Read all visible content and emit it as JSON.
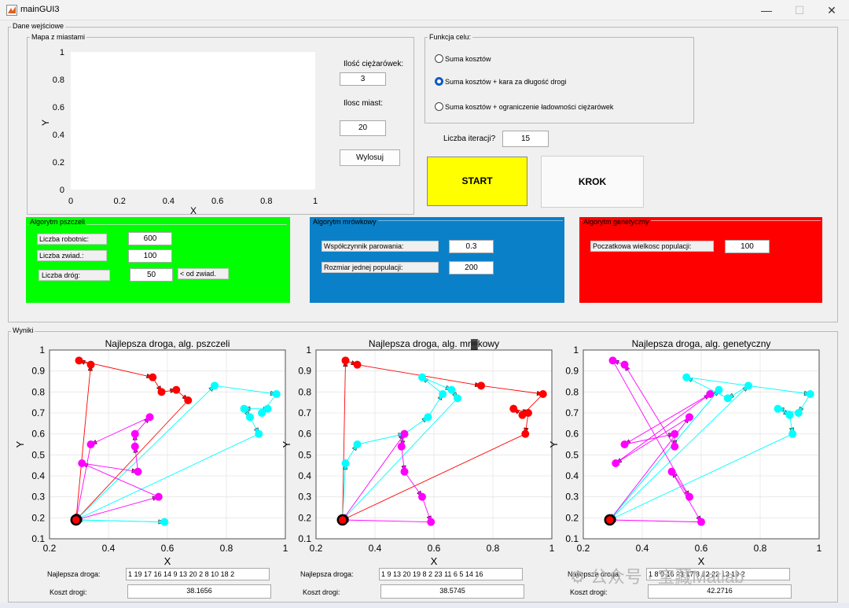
{
  "window": {
    "title": "mainGUI3",
    "minimize": "—",
    "maximize": "☐",
    "close": "✕"
  },
  "input": {
    "title": "Dane wejściowe",
    "map": {
      "title": "Mapa z miastami",
      "xlabel": "X",
      "ylabel": "Y",
      "xticks": [
        "0",
        "0.2",
        "0.4",
        "0.6",
        "0.8",
        "1"
      ],
      "yticks": [
        "0",
        "0.2",
        "0.4",
        "0.6",
        "0.8",
        "1"
      ]
    },
    "trucks_label": "Ilość ciężarówek:",
    "trucks_value": "3",
    "cities_label": "Ilosc miast:",
    "cities_value": "20",
    "draw_button": "Wylosuj",
    "objective": {
      "title": "Funkcja celu:",
      "options": [
        "Suma kosztów",
        "Suma kosztów + kara za długość drogi",
        "Suma kosztów + ograniczenie ładowności ciężarówek"
      ],
      "selected_index": 1
    },
    "iterations_label": "Liczba iteracji?",
    "iterations_value": "15",
    "start_button": "START",
    "step_button": "KROK",
    "bee": {
      "title": "Algorytm pszczeli",
      "workers_label": "Liczba robotnic:",
      "workers_value": "600",
      "scouts_label": "Liczba zwiad.:",
      "scouts_value": "100",
      "roads_label": "Liczba dróg:",
      "roads_value": "50",
      "roads_note": "< od zwiad."
    },
    "ant": {
      "title": "Algorytm mrówkowy",
      "evap_label": "Współczynnik parowania:",
      "evap_value": "0.3",
      "pop_label": "Rozmiar jednej populacji:",
      "pop_value": "200"
    },
    "genetic": {
      "title": "Algorytm genetyczny",
      "pop_label": "Poczatkowa wielkosc populacji:",
      "pop_value": "100"
    }
  },
  "results": {
    "title": "Wyniki",
    "best_label": "Najlepsza droga:",
    "cost_label": "Koszt drogi:",
    "colors": {
      "route1": "#ff0000",
      "route2": "#00ffff",
      "route3": "#ff00ff",
      "depot": "#000000"
    },
    "plots": [
      {
        "title": "Najlepsza droga, alg. pszczeli",
        "route_text": "1 19 17 16 14 9 13 20 2 8 10 18 2",
        "cost": "38.1656"
      },
      {
        "title": "Najlepsza droga, alg. mr▓kowy",
        "route_text": "1 9 13 20 19 8 2 23 11 6 5 14 16",
        "cost": "38.5745"
      },
      {
        "title": "Najlepsza droga, alg. genetyczny",
        "route_text": "1 8 9 16 23 17 3 12 22 13 19 2",
        "cost": "42.2716"
      }
    ]
  },
  "chart_data": [
    {
      "type": "scatter",
      "title": "",
      "xlabel": "X",
      "ylabel": "Y",
      "xlim": [
        0,
        1
      ],
      "ylim": [
        0,
        1
      ],
      "series": []
    },
    {
      "type": "line",
      "title": "Najlepsza droga, alg. pszczeli",
      "xlabel": "X",
      "ylabel": "Y",
      "xlim": [
        0.2,
        1
      ],
      "ylim": [
        0.1,
        1
      ],
      "grid": true,
      "xticks": [
        "0.2",
        "0.4",
        "0.6",
        "0.8",
        "1"
      ],
      "yticks": [
        "0.1",
        "0.2",
        "0.3",
        "0.4",
        "0.5",
        "0.6",
        "0.7",
        "0.8",
        "0.9",
        "1"
      ],
      "depot": [
        0.29,
        0.19
      ],
      "series": [
        {
          "color": "#ff0000",
          "points": [
            [
              0.29,
              0.19
            ],
            [
              0.34,
              0.93
            ],
            [
              0.3,
              0.95
            ],
            [
              0.55,
              0.87
            ],
            [
              0.58,
              0.8
            ],
            [
              0.63,
              0.81
            ],
            [
              0.67,
              0.76
            ],
            [
              0.29,
              0.19
            ]
          ]
        },
        {
          "color": "#00ffff",
          "points": [
            [
              0.29,
              0.19
            ],
            [
              0.76,
              0.83
            ],
            [
              0.97,
              0.79
            ],
            [
              0.92,
              0.7
            ],
            [
              0.94,
              0.72
            ],
            [
              0.86,
              0.72
            ],
            [
              0.88,
              0.68
            ],
            [
              0.91,
              0.6
            ],
            [
              0.29,
              0.19
            ],
            [
              0.59,
              0.18
            ],
            [
              0.29,
              0.19
            ]
          ]
        },
        {
          "color": "#ff00ff",
          "points": [
            [
              0.29,
              0.19
            ],
            [
              0.57,
              0.3
            ],
            [
              0.31,
              0.46
            ],
            [
              0.5,
              0.42
            ],
            [
              0.49,
              0.54
            ],
            [
              0.49,
              0.6
            ],
            [
              0.54,
              0.68
            ],
            [
              0.34,
              0.55
            ],
            [
              0.29,
              0.19
            ]
          ]
        }
      ]
    },
    {
      "type": "line",
      "title": "Najlepsza droga, alg. mr▓kowy",
      "xlabel": "X",
      "ylabel": "Y",
      "xlim": [
        0.2,
        1
      ],
      "ylim": [
        0.1,
        1
      ],
      "grid": true,
      "xticks": [
        "0.2",
        "0.4",
        "0.6",
        "0.8",
        "1"
      ],
      "yticks": [
        "0.1",
        "0.2",
        "0.3",
        "0.4",
        "0.5",
        "0.6",
        "0.7",
        "0.8",
        "0.9",
        "1"
      ],
      "depot": [
        0.29,
        0.19
      ],
      "series": [
        {
          "color": "#ff0000",
          "points": [
            [
              0.29,
              0.19
            ],
            [
              0.3,
              0.95
            ],
            [
              0.34,
              0.93
            ],
            [
              0.76,
              0.83
            ],
            [
              0.97,
              0.79
            ],
            [
              0.9,
              0.69
            ],
            [
              0.87,
              0.72
            ],
            [
              0.92,
              0.7
            ],
            [
              0.91,
              0.6
            ],
            [
              0.29,
              0.19
            ]
          ]
        },
        {
          "color": "#00ffff",
          "points": [
            [
              0.29,
              0.19
            ],
            [
              0.3,
              0.46
            ],
            [
              0.34,
              0.55
            ],
            [
              0.5,
              0.6
            ],
            [
              0.58,
              0.68
            ],
            [
              0.63,
              0.79
            ],
            [
              0.56,
              0.87
            ],
            [
              0.66,
              0.81
            ],
            [
              0.68,
              0.77
            ],
            [
              0.29,
              0.19
            ]
          ]
        },
        {
          "color": "#ff00ff",
          "points": [
            [
              0.29,
              0.19
            ],
            [
              0.5,
              0.6
            ],
            [
              0.49,
              0.54
            ],
            [
              0.5,
              0.42
            ],
            [
              0.56,
              0.3
            ],
            [
              0.59,
              0.18
            ],
            [
              0.29,
              0.19
            ]
          ]
        }
      ]
    },
    {
      "type": "line",
      "title": "Najlepsza droga, alg. genetyczny",
      "xlabel": "X",
      "ylabel": "Y",
      "xlim": [
        0.2,
        1
      ],
      "ylim": [
        0.1,
        1
      ],
      "grid": true,
      "xticks": [
        "0.2",
        "0.4",
        "0.6",
        "0.8",
        "1"
      ],
      "yticks": [
        "0.1",
        "0.2",
        "0.3",
        "0.4",
        "0.5",
        "0.6",
        "0.7",
        "0.8",
        "0.9",
        "1"
      ],
      "depot": [
        0.29,
        0.19
      ],
      "series": [
        {
          "color": "#00ffff",
          "points": [
            [
              0.29,
              0.19
            ],
            [
              0.76,
              0.83
            ],
            [
              0.69,
              0.77
            ],
            [
              0.55,
              0.87
            ],
            [
              0.97,
              0.79
            ],
            [
              0.93,
              0.7
            ],
            [
              0.86,
              0.72
            ],
            [
              0.9,
              0.69
            ],
            [
              0.91,
              0.6
            ],
            [
              0.29,
              0.19
            ],
            [
              0.66,
              0.81
            ],
            [
              0.29,
              0.19
            ]
          ]
        },
        {
          "color": "#ff00ff",
          "points": [
            [
              0.29,
              0.19
            ],
            [
              0.56,
              0.68
            ],
            [
              0.31,
              0.46
            ],
            [
              0.63,
              0.79
            ],
            [
              0.34,
              0.55
            ],
            [
              0.51,
              0.6
            ],
            [
              0.51,
              0.54
            ],
            [
              0.34,
              0.93
            ],
            [
              0.3,
              0.95
            ],
            [
              0.56,
              0.3
            ],
            [
              0.5,
              0.42
            ],
            [
              0.6,
              0.18
            ],
            [
              0.29,
              0.19
            ]
          ]
        }
      ]
    }
  ]
}
